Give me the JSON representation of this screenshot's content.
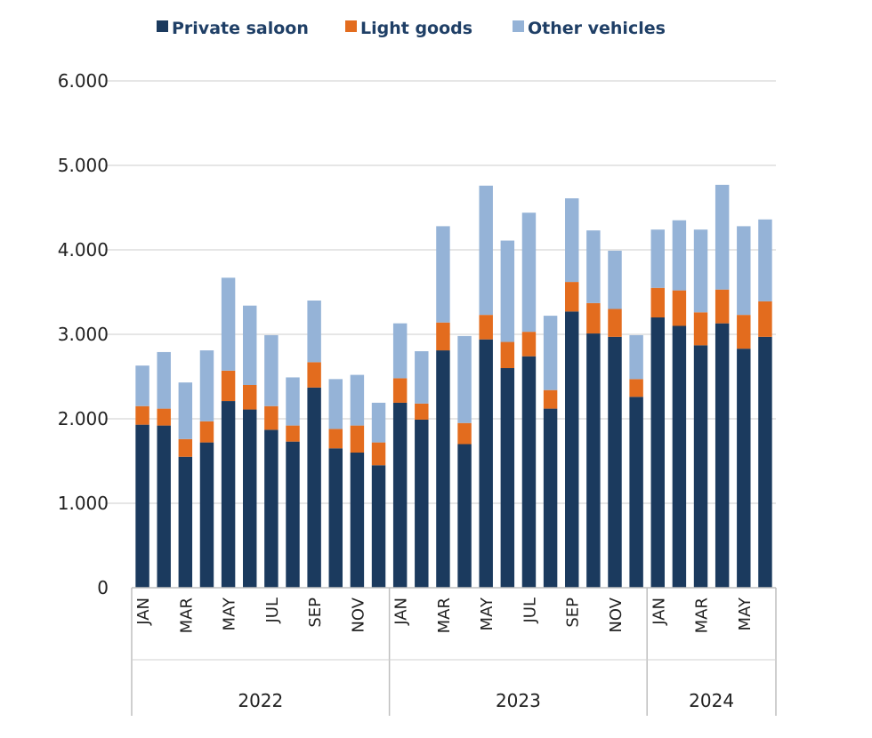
{
  "chart_data": {
    "type": "bar",
    "stacked": true,
    "title": "",
    "xlabel": "",
    "ylabel": "",
    "ylim": [
      0,
      6000
    ],
    "yticks": [
      0,
      1000,
      2000,
      3000,
      4000,
      5000,
      6000
    ],
    "ytick_labels": [
      "0",
      "1.000",
      "2.000",
      "3.000",
      "4.000",
      "5.000",
      "6.000"
    ],
    "grid": true,
    "legend_position": "top",
    "categories": [
      "JAN",
      "FEB",
      "MAR",
      "APR",
      "MAY",
      "JUN",
      "JUL",
      "AUG",
      "SEP",
      "OCT",
      "NOV",
      "DEC",
      "JAN",
      "FEB",
      "MAR",
      "APR",
      "MAY",
      "JUN",
      "JUL",
      "AUG",
      "SEP",
      "OCT",
      "NOV",
      "DEC",
      "JAN",
      "FEB",
      "MAR",
      "APR",
      "MAY",
      "JUN"
    ],
    "shown_tick_labels": [
      "JAN",
      "",
      "MAR",
      "",
      "MAY",
      "",
      "JUL",
      "",
      "SEP",
      "",
      "NOV",
      "",
      "JAN",
      "",
      "MAR",
      "",
      "MAY",
      "",
      "JUL",
      "",
      "SEP",
      "",
      "NOV",
      "",
      "JAN",
      "",
      "MAR",
      "",
      "MAY",
      ""
    ],
    "groups": [
      {
        "label": "2022",
        "count": 12
      },
      {
        "label": "2023",
        "count": 12
      },
      {
        "label": "2024",
        "count": 6
      }
    ],
    "series": [
      {
        "name": "Private saloon",
        "color": "#1b3a5e",
        "values": [
          1930,
          1920,
          1550,
          1720,
          2210,
          2110,
          1870,
          1730,
          2370,
          1650,
          1600,
          1450,
          2190,
          1990,
          2810,
          1700,
          2940,
          2600,
          2740,
          2120,
          3270,
          3010,
          2970,
          2260,
          3200,
          3100,
          2870,
          3130,
          2830,
          2970
        ]
      },
      {
        "name": "Light goods",
        "color": "#e36c1e",
        "values": [
          220,
          200,
          210,
          250,
          360,
          290,
          280,
          190,
          300,
          230,
          320,
          270,
          290,
          190,
          330,
          250,
          290,
          310,
          290,
          220,
          350,
          360,
          330,
          210,
          350,
          420,
          390,
          400,
          400,
          420
        ]
      },
      {
        "name": "Other vehicles",
        "color": "#95b3d7",
        "values": [
          480,
          670,
          670,
          840,
          1100,
          940,
          840,
          570,
          730,
          590,
          600,
          470,
          650,
          620,
          1140,
          1030,
          1530,
          1200,
          1410,
          880,
          990,
          860,
          690,
          520,
          690,
          830,
          980,
          1240,
          1050,
          970
        ]
      }
    ]
  }
}
